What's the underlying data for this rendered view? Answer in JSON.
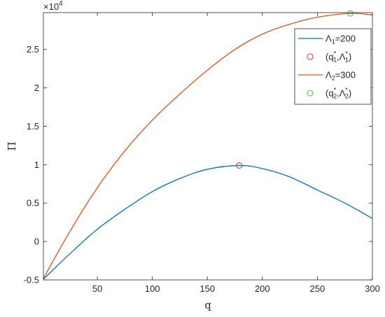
{
  "chart_data": {
    "type": "line",
    "xlabel": "q",
    "ylabel": "Π",
    "xlim": [
      1,
      300
    ],
    "ylim": [
      -5000,
      29800
    ],
    "x_ticks": [
      50,
      100,
      150,
      200,
      250,
      300
    ],
    "x_tick_labels": [
      "50",
      "100",
      "150",
      "200",
      "250",
      "300"
    ],
    "y_ticks": [
      -5000,
      0,
      5000,
      10000,
      15000,
      20000,
      25000
    ],
    "y_tick_labels": [
      "-0.5",
      "0",
      "0.5",
      "1",
      "1.5",
      "2",
      "2.5"
    ],
    "y_exponent_label": "×10",
    "y_exponent_power": "4",
    "legend_position": "top-right",
    "series": [
      {
        "name": "Λ1=200",
        "color": "#0072BD",
        "x": [
          1,
          25,
          50,
          75,
          100,
          125,
          150,
          179,
          200,
          225,
          250,
          275,
          300
        ],
        "y": [
          -4900,
          -1600,
          1600,
          4200,
          6500,
          8200,
          9400,
          9900,
          9500,
          8400,
          6700,
          5000,
          3000
        ]
      },
      {
        "name": "Λ2=300",
        "color": "#D95319",
        "x": [
          1,
          25,
          50,
          75,
          100,
          125,
          150,
          175,
          200,
          225,
          250,
          280,
          300
        ],
        "y": [
          -4800,
          1300,
          7000,
          11800,
          15800,
          19200,
          22300,
          25000,
          27000,
          28300,
          29200,
          29700,
          29500
        ]
      }
    ],
    "optimum_points": [
      {
        "name": "(q1*,Λ1*)",
        "x": 179,
        "y": 9900,
        "color": "#E0393E"
      },
      {
        "name": "(q2*,Λ2*)",
        "x": 280,
        "y": 29700,
        "color": "#4CC84C"
      }
    ],
    "legend": [
      {
        "kind": "line",
        "color": "#0072BD",
        "base": "Λ",
        "sub": "1",
        "tail": "=200"
      },
      {
        "kind": "marker",
        "color": "#E0393E",
        "p1": "(q",
        "sup1": "*",
        "sub1": "1",
        "p2": ",Λ",
        "sup2": "*",
        "sub2": "1",
        "p3": ")"
      },
      {
        "kind": "line",
        "color": "#D95319",
        "base": "Λ",
        "sub": "2",
        "tail": "=300"
      },
      {
        "kind": "marker",
        "color": "#4CC84C",
        "p1": "(q",
        "sup1": "*",
        "sub1": "2",
        "p2": ",Λ",
        "sup2": "*",
        "sub2": "2",
        "p3": ")"
      }
    ]
  }
}
